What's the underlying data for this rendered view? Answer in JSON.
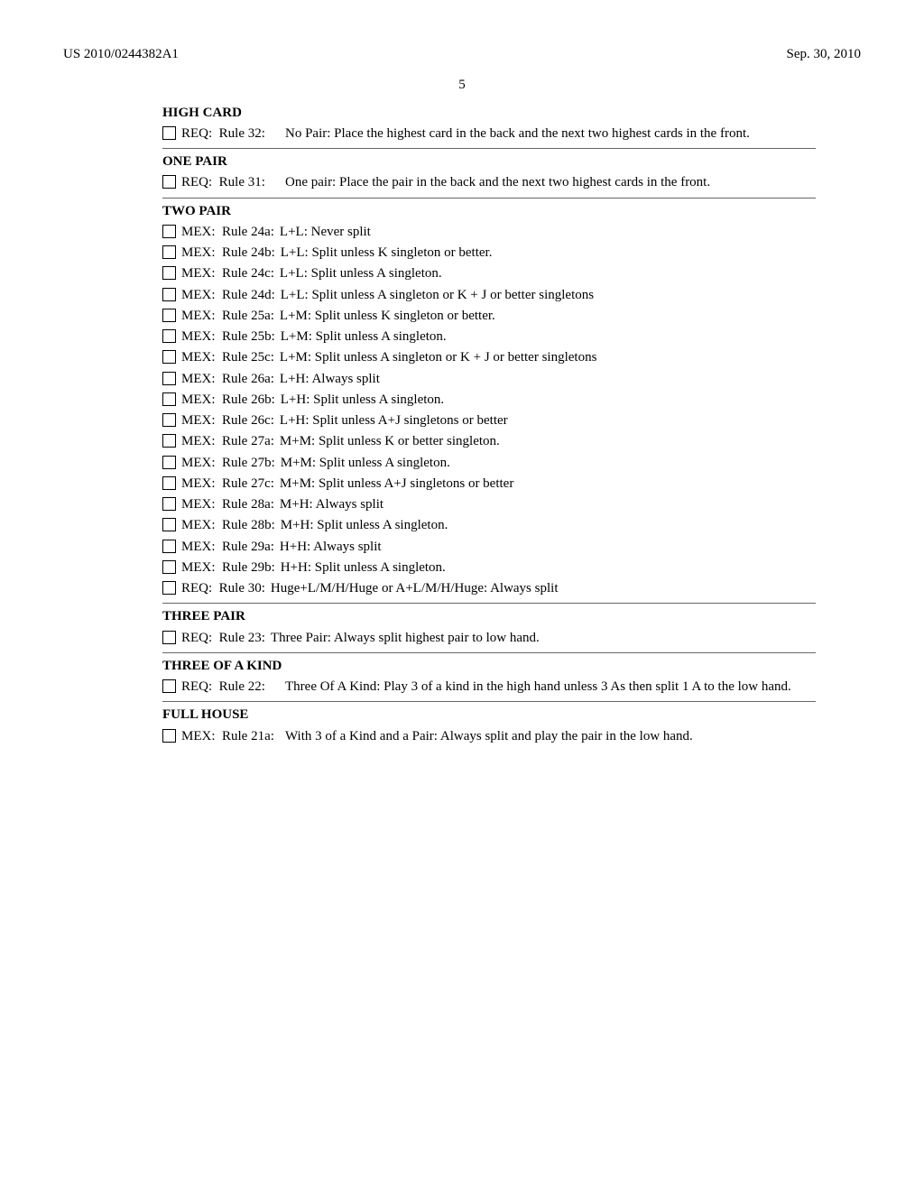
{
  "header": {
    "left": "US 2010/0244382A1",
    "right": "Sep. 30, 2010"
  },
  "page_number": "5",
  "sections": [
    {
      "title": "HIGH CARD",
      "rules": [
        {
          "type": "REQ",
          "label": "Rule 32:",
          "desc": "No Pair: Place the highest card in the back and the next two highest cards in the front.",
          "indent": 131
        }
      ],
      "separator": true
    },
    {
      "title": "ONE PAIR",
      "rules": [
        {
          "type": "REQ",
          "label": "Rule 31:",
          "desc": "One pair: Place the pair in the back and the next two highest cards in the front.",
          "indent": 131
        }
      ],
      "separator": true
    },
    {
      "title": "TWO PAIR",
      "rules": [
        {
          "type": "MEX",
          "label": "Rule 24a:",
          "desc": "L+L: Never split"
        },
        {
          "type": "MEX",
          "label": "Rule 24b:",
          "desc": "L+L: Split unless K singleton or better."
        },
        {
          "type": "MEX",
          "label": "Rule 24c:",
          "desc": "L+L: Split unless A singleton."
        },
        {
          "type": "MEX",
          "label": "Rule 24d:",
          "desc": "L+L: Split unless A singleton or K + J or better singletons"
        },
        {
          "type": "MEX",
          "label": "Rule 25a:",
          "desc": "L+M: Split unless K singleton or better."
        },
        {
          "type": "MEX",
          "label": "Rule 25b:",
          "desc": "L+M: Split unless A singleton."
        },
        {
          "type": "MEX",
          "label": "Rule 25c:",
          "desc": "L+M: Split unless A singleton or K + J or better singletons"
        },
        {
          "type": "MEX",
          "label": "Rule 26a:",
          "desc": "L+H: Always split"
        },
        {
          "type": "MEX",
          "label": "Rule 26b:",
          "desc": "L+H: Split unless A singleton."
        },
        {
          "type": "MEX",
          "label": "Rule 26c:",
          "desc": "L+H: Split unless A+J singletons or better"
        },
        {
          "type": "MEX",
          "label": "Rule 27a:",
          "desc": "M+M: Split unless K or better singleton."
        },
        {
          "type": "MEX",
          "label": "Rule 27b:",
          "desc": "M+M: Split unless A singleton."
        },
        {
          "type": "MEX",
          "label": "Rule 27c:",
          "desc": "M+M: Split unless A+J singletons or better"
        },
        {
          "type": "MEX",
          "label": "Rule 28a:",
          "desc": "M+H: Always split"
        },
        {
          "type": "MEX",
          "label": "Rule 28b:",
          "desc": "M+H: Split unless A singleton."
        },
        {
          "type": "MEX",
          "label": "Rule 29a:",
          "desc": "H+H: Always split"
        },
        {
          "type": "MEX",
          "label": "Rule 29b:",
          "desc": "H+H: Split unless A singleton."
        },
        {
          "type": "REQ",
          "label": "Rule 30:",
          "desc": "Huge+L/M/H/Huge or A+L/M/H/Huge: Always split"
        }
      ],
      "separator": true
    },
    {
      "title": "THREE PAIR",
      "rules": [
        {
          "type": "REQ",
          "label": "Rule 23:",
          "desc": "Three Pair: Always split highest pair to low hand."
        }
      ],
      "separator": true
    },
    {
      "title": "THREE OF A KIND",
      "rules": [
        {
          "type": "REQ",
          "label": "Rule 22:",
          "desc": "Three Of A Kind: Play 3 of a kind in the high hand unless 3 As then split 1 A to the low hand.",
          "indent": 131
        }
      ],
      "separator": true
    },
    {
      "title": "FULL HOUSE",
      "rules": [
        {
          "type": "MEX",
          "label": "Rule 21a:",
          "desc": "With 3 of a Kind and a Pair: Always split and play the pair in the low hand.",
          "indent": 139
        }
      ],
      "separator": false
    }
  ]
}
